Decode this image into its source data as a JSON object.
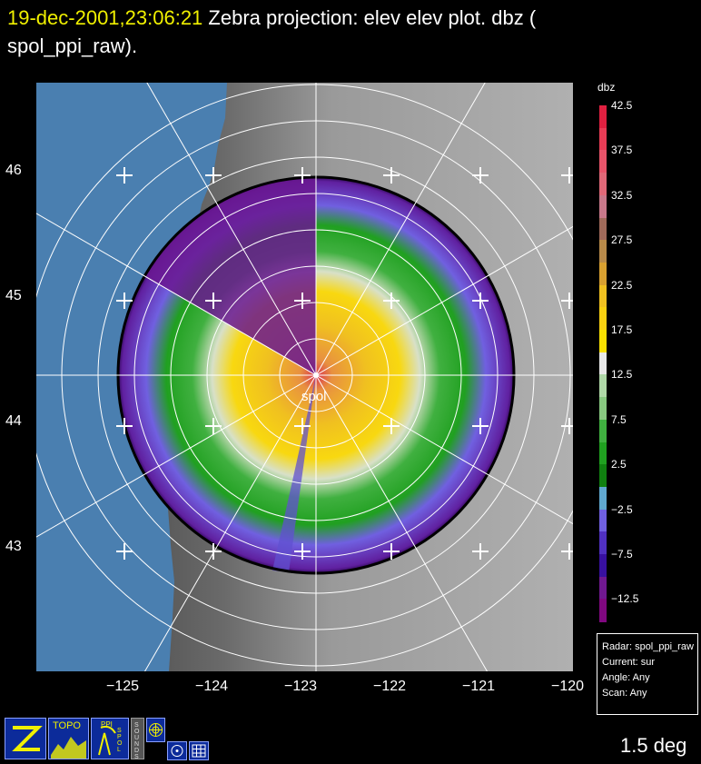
{
  "header": {
    "timestamp": "19-dec-2001,23:06:21",
    "title_rest": "  Zebra projection: elev elev  plot.  dbz (",
    "title_line2": "spol_ppi_raw)."
  },
  "map": {
    "radar_label": "spol",
    "lat_labels": [
      "46",
      "45",
      "44",
      "43"
    ],
    "lon_labels": [
      "−125",
      "−124",
      "−123",
      "−122",
      "−121",
      "−120"
    ]
  },
  "legend": {
    "unit": "dbz",
    "levels": [
      {
        "label": "42.5",
        "color": "#e02040"
      },
      {
        "label": "",
        "color": "#e83c55"
      },
      {
        "label": "37.5",
        "color": "#e8546a"
      },
      {
        "label": "",
        "color": "#e06878"
      },
      {
        "label": "32.5",
        "color": "#c8788a"
      },
      {
        "label": "",
        "color": "#a06a5a"
      },
      {
        "label": "27.5",
        "color": "#b88a4a"
      },
      {
        "label": "",
        "color": "#d8a030"
      },
      {
        "label": "22.5",
        "color": "#f0c020"
      },
      {
        "label": "",
        "color": "#f8d010"
      },
      {
        "label": "17.5",
        "color": "#f8e000"
      },
      {
        "label": "",
        "color": "#e8e8e8"
      },
      {
        "label": "12.5",
        "color": "#b0d8a8"
      },
      {
        "label": "",
        "color": "#88c880"
      },
      {
        "label": "7.5",
        "color": "#40b040"
      },
      {
        "label": "",
        "color": "#20a020"
      },
      {
        "label": "2.5",
        "color": "#108010"
      },
      {
        "label": "",
        "color": "#60a8d0"
      },
      {
        "label": "−2.5",
        "color": "#7060e0"
      },
      {
        "label": "",
        "color": "#5030c0"
      },
      {
        "label": "−7.5",
        "color": "#3810a0"
      },
      {
        "label": "",
        "color": "#701890"
      },
      {
        "label": "−12.5",
        "color": "#800880"
      }
    ]
  },
  "info": {
    "radar": "Radar: spol_ppi_raw",
    "current": "Current: sur",
    "angle": "Angle: Any",
    "scan": "Scan: Any"
  },
  "status": {
    "elevation": "1.5 deg"
  },
  "toolbar": {
    "topo_label": "TOPO",
    "ppi_label": "PPI",
    "spol_label": "SPOL",
    "sounds_label": "SOUNDS"
  }
}
